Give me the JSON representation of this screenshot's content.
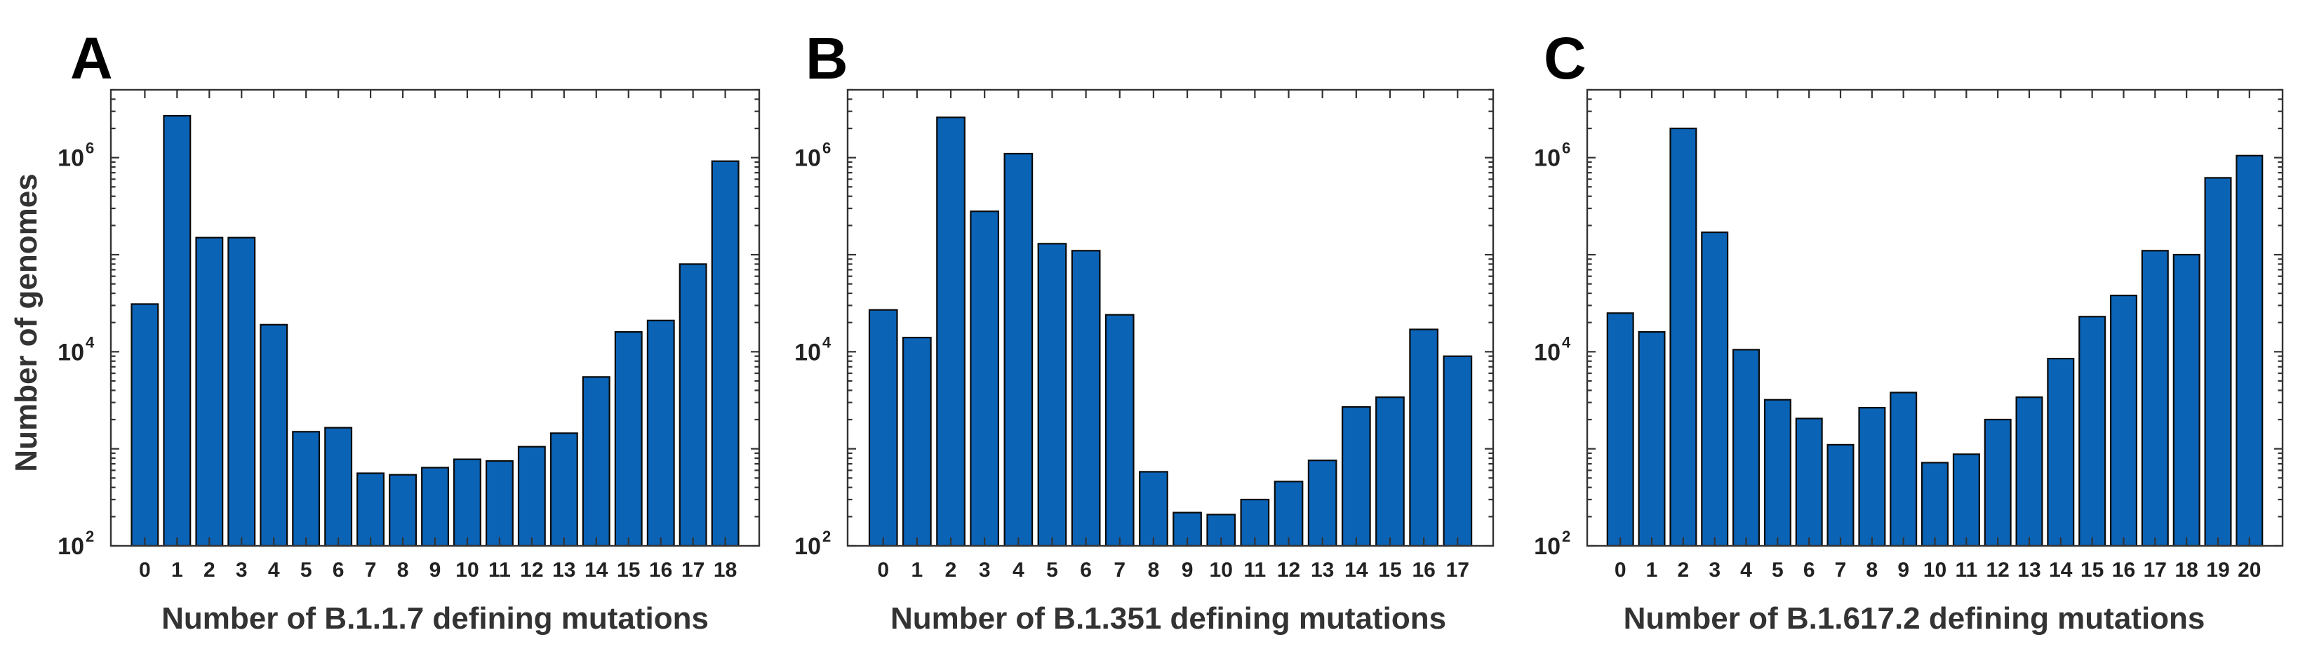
{
  "figure": {
    "ylabel": "Number of genomes",
    "yscale": "log",
    "ylim": [
      100,
      5000000
    ],
    "yticks": [
      {
        "base": "10",
        "exp": "2",
        "value": 100
      },
      {
        "base": "10",
        "exp": "4",
        "value": 10000
      },
      {
        "base": "10",
        "exp": "6",
        "value": 1000000
      }
    ]
  },
  "colors": {
    "bar": "#0b63b6",
    "edge": "#0a0a0a",
    "axis": "#333333"
  },
  "chart_data": [
    {
      "type": "bar",
      "panel": "A",
      "title": "",
      "xlabel": "Number of B.1.1.7 defining mutations",
      "ylabel": "Number of genomes",
      "categories": [
        "0",
        "1",
        "2",
        "3",
        "4",
        "5",
        "6",
        "7",
        "8",
        "9",
        "10",
        "11",
        "12",
        "13",
        "14",
        "15",
        "16",
        "17",
        "18"
      ],
      "values": [
        31000,
        2700000,
        150000,
        150000,
        19000,
        1500,
        1650,
        560,
        540,
        640,
        780,
        750,
        1050,
        1450,
        5500,
        16000,
        21000,
        80000,
        920000
      ],
      "ylim": [
        100,
        5000000
      ]
    },
    {
      "type": "bar",
      "panel": "B",
      "title": "",
      "xlabel": "Number of B.1.351 defining mutations",
      "ylabel": "",
      "categories": [
        "0",
        "1",
        "2",
        "3",
        "4",
        "5",
        "6",
        "7",
        "8",
        "9",
        "10",
        "11",
        "12",
        "13",
        "14",
        "15",
        "16",
        "17"
      ],
      "values": [
        27000,
        14000,
        2600000,
        280000,
        1100000,
        130000,
        110000,
        24000,
        580,
        220,
        210,
        300,
        460,
        760,
        2700,
        3400,
        17000,
        9000
      ],
      "ylim": [
        100,
        5000000
      ]
    },
    {
      "type": "bar",
      "panel": "C",
      "title": "",
      "xlabel": "Number of B.1.617.2 defining mutations",
      "ylabel": "",
      "categories": [
        "0",
        "1",
        "2",
        "3",
        "4",
        "5",
        "6",
        "7",
        "8",
        "9",
        "10",
        "11",
        "12",
        "13",
        "14",
        "15",
        "16",
        "17",
        "18",
        "19",
        "20"
      ],
      "values": [
        25000,
        16000,
        2000000,
        170000,
        10500,
        3200,
        2050,
        1100,
        2650,
        3800,
        720,
        880,
        2000,
        3400,
        8500,
        23000,
        38000,
        110000,
        100000,
        620000,
        1050000
      ],
      "ylim": [
        100,
        5000000
      ]
    }
  ]
}
